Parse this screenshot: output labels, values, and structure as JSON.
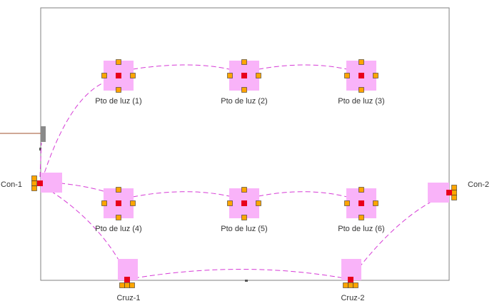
{
  "colors": {
    "room_border": "#808080",
    "highlight": "#f9b3f9",
    "handle_fill": "#ffa500",
    "handle_stroke": "#333333",
    "center": "#e8001c",
    "wire": "#d63bd6",
    "feed_line": "#a0522d",
    "panel": "#8a8a8a"
  },
  "lights": [
    {
      "id": "l1",
      "label": "Pto de luz (1)"
    },
    {
      "id": "l2",
      "label": "Pto de luz (2)"
    },
    {
      "id": "l3",
      "label": "Pto de luz (3)"
    },
    {
      "id": "l4",
      "label": "Pto de luz (4)"
    },
    {
      "id": "l5",
      "label": "Pto de luz (5)"
    },
    {
      "id": "l6",
      "label": "Pto de luz (6)"
    }
  ],
  "switches": [
    {
      "id": "con1",
      "label": "Con-1"
    },
    {
      "id": "con2",
      "label": "Con-2"
    },
    {
      "id": "cruz1",
      "label": "Cruz-1"
    },
    {
      "id": "cruz2",
      "label": "Cruz-2"
    }
  ]
}
